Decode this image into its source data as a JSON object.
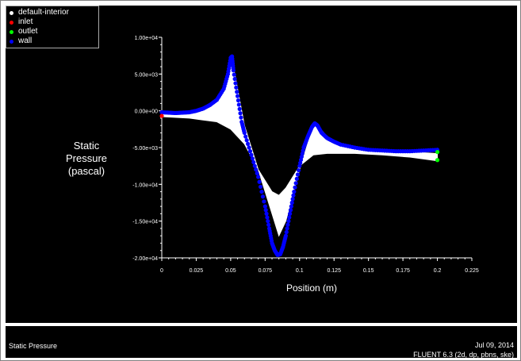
{
  "legend": {
    "items": [
      {
        "label": "default-interior",
        "color": "#ffffff"
      },
      {
        "label": "inlet",
        "color": "#ff0000"
      },
      {
        "label": "outlet",
        "color": "#00ff00"
      },
      {
        "label": "wall",
        "color": "#0000ff"
      }
    ]
  },
  "footer": {
    "left_text": "Static Pressure",
    "date": "Jul 09, 2014",
    "version": "FLUENT 6.3 (2d, dp, pbns, ske)"
  },
  "chart_data": {
    "type": "scatter",
    "title": "",
    "xlabel": "Position (m)",
    "ylabel_lines": [
      "Static",
      "Pressure",
      "(pascal)"
    ],
    "xlim": [
      0,
      0.225
    ],
    "ylim": [
      -20000,
      10000
    ],
    "x_ticks": [
      "0",
      "0.025",
      "0.05",
      "0.075",
      "0.1",
      "0.125",
      "0.15",
      "0.175",
      "0.2",
      "0.225"
    ],
    "y_ticks": [
      "1.00e+04",
      "5.00e+03",
      "0.00e+00",
      "-5.00e+03",
      "-1.00e+04",
      "-1.50e+04",
      "-2.00e+04"
    ],
    "series": [
      {
        "name": "default-interior",
        "color": "#ffffff",
        "upper": [
          [
            0,
            -500
          ],
          [
            0.01,
            -500
          ],
          [
            0.02,
            -200
          ],
          [
            0.03,
            200
          ],
          [
            0.04,
            1500
          ],
          [
            0.045,
            3000
          ],
          [
            0.05,
            7200
          ],
          [
            0.052,
            6000
          ],
          [
            0.06,
            -2000
          ],
          [
            0.07,
            -8000
          ],
          [
            0.08,
            -14000
          ],
          [
            0.085,
            -17000
          ],
          [
            0.09,
            -15000
          ],
          [
            0.1,
            -8000
          ],
          [
            0.105,
            -5000
          ],
          [
            0.11,
            -2000
          ],
          [
            0.112,
            -1800
          ],
          [
            0.12,
            -3500
          ],
          [
            0.13,
            -4500
          ],
          [
            0.15,
            -5300
          ],
          [
            0.17,
            -5500
          ],
          [
            0.2,
            -5800
          ]
        ],
        "lower": [
          [
            0,
            -800
          ],
          [
            0.02,
            -1000
          ],
          [
            0.04,
            -1500
          ],
          [
            0.05,
            -2500
          ],
          [
            0.06,
            -4500
          ],
          [
            0.07,
            -8000
          ],
          [
            0.08,
            -11000
          ],
          [
            0.085,
            -11500
          ],
          [
            0.09,
            -10500
          ],
          [
            0.1,
            -7500
          ],
          [
            0.11,
            -6000
          ],
          [
            0.12,
            -5800
          ],
          [
            0.14,
            -5800
          ],
          [
            0.16,
            -6000
          ],
          [
            0.18,
            -6300
          ],
          [
            0.2,
            -6800
          ]
        ]
      },
      {
        "name": "inlet",
        "color": "#ff0000",
        "points": [
          [
            0,
            -700
          ]
        ]
      },
      {
        "name": "outlet",
        "color": "#00ff00",
        "points": [
          [
            0.2,
            -6700
          ],
          [
            0.2,
            -5600
          ]
        ]
      },
      {
        "name": "wall",
        "color": "#0000ff",
        "points": [
          [
            0,
            -200
          ],
          [
            0.005,
            -250
          ],
          [
            0.01,
            -300
          ],
          [
            0.015,
            -250
          ],
          [
            0.02,
            -200
          ],
          [
            0.025,
            0
          ],
          [
            0.03,
            300
          ],
          [
            0.035,
            800
          ],
          [
            0.04,
            1500
          ],
          [
            0.045,
            3000
          ],
          [
            0.048,
            5000
          ],
          [
            0.05,
            7200
          ],
          [
            0.051,
            7400
          ],
          [
            0.052,
            5500
          ],
          [
            0.055,
            2000
          ],
          [
            0.058,
            -1500
          ],
          [
            0.06,
            -3000
          ],
          [
            0.065,
            -6000
          ],
          [
            0.07,
            -9000
          ],
          [
            0.075,
            -13000
          ],
          [
            0.078,
            -16000
          ],
          [
            0.08,
            -18000
          ],
          [
            0.082,
            -19000
          ],
          [
            0.084,
            -19600
          ],
          [
            0.086,
            -19500
          ],
          [
            0.088,
            -18500
          ],
          [
            0.09,
            -17000
          ],
          [
            0.093,
            -14000
          ],
          [
            0.096,
            -11000
          ],
          [
            0.1,
            -7500
          ],
          [
            0.103,
            -5000
          ],
          [
            0.106,
            -3500
          ],
          [
            0.109,
            -2200
          ],
          [
            0.111,
            -1700
          ],
          [
            0.113,
            -2000
          ],
          [
            0.116,
            -3000
          ],
          [
            0.12,
            -3700
          ],
          [
            0.125,
            -4200
          ],
          [
            0.13,
            -4600
          ],
          [
            0.14,
            -5000
          ],
          [
            0.15,
            -5300
          ],
          [
            0.16,
            -5400
          ],
          [
            0.17,
            -5500
          ],
          [
            0.18,
            -5500
          ],
          [
            0.19,
            -5400
          ],
          [
            0.2,
            -5300
          ]
        ]
      }
    ]
  }
}
